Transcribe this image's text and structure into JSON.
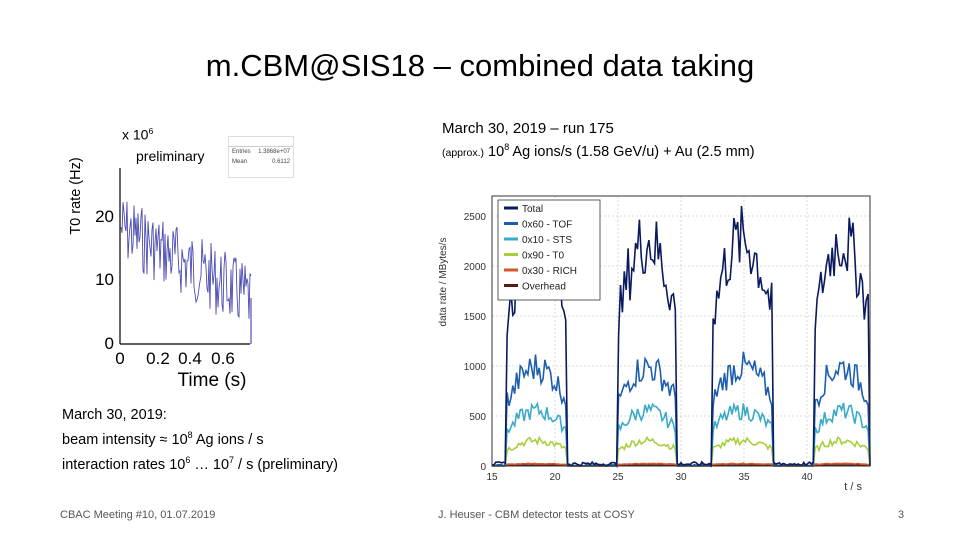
{
  "slide": {
    "title": "m.CBM@SIS18 – combined data taking",
    "footer_left": "CBAC Meeting #10, 01.07.2019",
    "footer_center": "J. Heuser - CBM detector tests at COSY",
    "page_number": "3"
  },
  "left_plot": {
    "ylabel": "T0 rate (Hz)",
    "scale_prefix": "x 10",
    "scale_exp": "6",
    "preliminary": "preliminary",
    "stats_entries_label": "Entries",
    "stats_entries_value": "1.3868e+07",
    "stats_mean_label": "Mean",
    "stats_mean_value": "0.6112",
    "y_ticks": [
      "0",
      "10",
      "20"
    ],
    "x_ticks": [
      "0",
      "0.2",
      "0.4",
      "0.6"
    ],
    "xlabel": "Time (s)",
    "series_color": "#2b2ba8"
  },
  "right_header": {
    "line1": "March 30, 2019 – run 175",
    "approx": "(approx.)",
    "line2_pre": " 10",
    "line2_exp": "8",
    "line2_post": " Ag ions/s (1.58 GeV/u) + Au (2.5 mm)"
  },
  "bottom_left": {
    "line1": "March 30, 2019:",
    "line2_pre": "beam intensity ≈ 10",
    "line2_exp": "8",
    "line2_post": " Ag ions / s",
    "line3_pre": "interaction rates 10",
    "line3_exp1": "6",
    "line3_mid": " … 10",
    "line3_exp2": "7",
    "line3_post": " / s  (preliminary)"
  },
  "chart_data": {
    "type": "line",
    "xlabel": "t / s",
    "ylabel": "data rate / MBytes/s",
    "xlim": [
      15,
      45
    ],
    "ylim": [
      0,
      2700
    ],
    "x_ticks": [
      15,
      20,
      25,
      30,
      35,
      40
    ],
    "y_ticks": [
      0,
      500,
      1000,
      1500,
      2000,
      2500
    ],
    "grid": true,
    "legend_position": "top-left",
    "spills": [
      [
        16.2,
        20.9
      ],
      [
        25.0,
        29.6
      ],
      [
        32.4,
        37.3
      ],
      [
        40.6,
        44.9
      ]
    ],
    "series": [
      {
        "name": "Total",
        "color": "#0b1a5e",
        "level": 2050
      },
      {
        "name": "0x60 - TOF",
        "color": "#1d5fae",
        "level": 900
      },
      {
        "name": "0x10 - STS",
        "color": "#3aaac8",
        "level": 500
      },
      {
        "name": "0x90 - T0",
        "color": "#a8cf3a",
        "level": 230
      },
      {
        "name": "0x30 - RICH",
        "color": "#d2572a",
        "level": 22
      },
      {
        "name": "Overhead",
        "color": "#5a1a10",
        "level": 8
      }
    ]
  }
}
